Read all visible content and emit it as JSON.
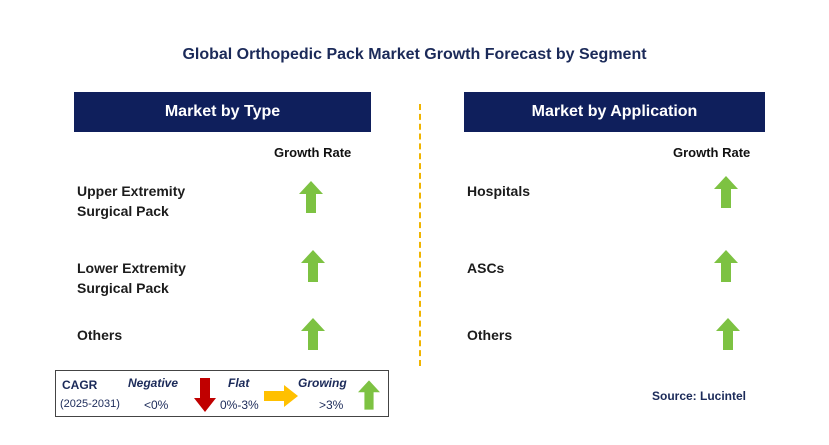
{
  "title": "Global Orthopedic Pack Market Growth Forecast by Segment",
  "colors": {
    "header_bg": "#0f1f5c",
    "growing_arrow": "#7dc242",
    "negative_arrow": "#c00000",
    "flat_arrow": "#ffc000",
    "divider": "#f0b400"
  },
  "left_panel": {
    "header": "Market by Type",
    "column_label": "Growth Rate",
    "rows": [
      {
        "line1": "Upper Extremity",
        "line2": "Surgical Pack",
        "trend": "growing"
      },
      {
        "line1": "Lower Extremity",
        "line2": "Surgical Pack",
        "trend": "growing"
      },
      {
        "line1": "Others",
        "line2": "",
        "trend": "growing"
      }
    ]
  },
  "right_panel": {
    "header": "Market by Application",
    "column_label": "Growth Rate",
    "rows": [
      {
        "line1": "Hospitals",
        "trend": "growing"
      },
      {
        "line1": "ASCs",
        "trend": "growing"
      },
      {
        "line1": "Others",
        "trend": "growing"
      }
    ]
  },
  "legend": {
    "cagr_label": "CAGR",
    "period": "(2025-2031)",
    "negative_label": "Negative",
    "negative_range": "<0%",
    "flat_label": "Flat",
    "flat_range": "0%-3%",
    "growing_label": "Growing",
    "growing_range": ">3%"
  },
  "source": "Source: Lucintel"
}
